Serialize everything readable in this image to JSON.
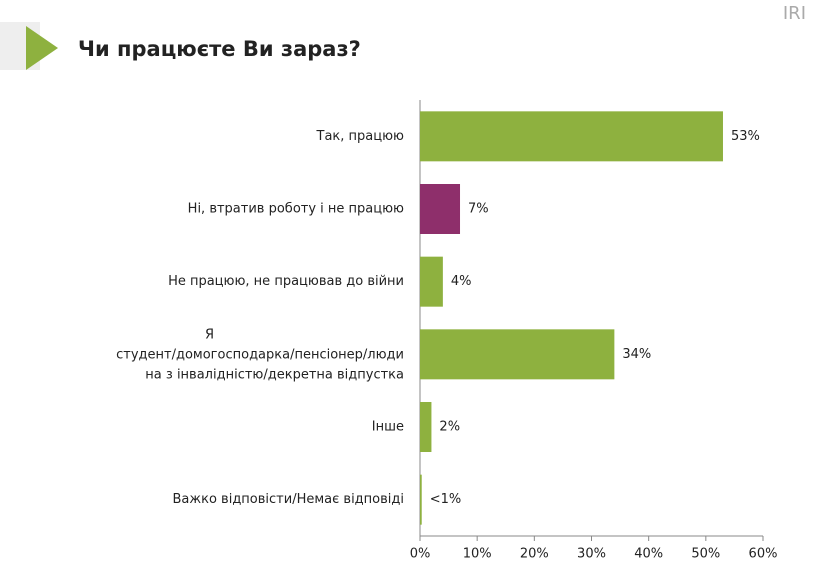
{
  "brand": "IRI",
  "chart_data": {
    "type": "bar",
    "orientation": "horizontal",
    "title": "Чи працюєте Ви зараз?",
    "categories": [
      "Так, працюю",
      "Ні, втратив роботу і не працюю",
      "Не працюю, не працював до війни",
      "Я\nстудент/домогосподарка/пенсіонер/люди\nна з інвалідністю/декретна відпустка",
      "Інше",
      "Важко відповісти/Немає відповіді"
    ],
    "values": [
      53,
      7,
      4,
      34,
      2,
      0.3
    ],
    "value_labels": [
      "53%",
      "7%",
      "4%",
      "34%",
      "2%",
      "<1%"
    ],
    "colors": [
      "#8eb13f",
      "#8e2f6b",
      "#8eb13f",
      "#8eb13f",
      "#8eb13f",
      "#8eb13f"
    ],
    "xlim": [
      0,
      60
    ],
    "xticks": [
      {
        "value": 0,
        "label": "0%"
      },
      {
        "value": 10,
        "label": "10%"
      },
      {
        "value": 20,
        "label": "20%"
      },
      {
        "value": 30,
        "label": "30%"
      },
      {
        "value": 40,
        "label": "40%"
      },
      {
        "value": 50,
        "label": "50%"
      },
      {
        "value": 60,
        "label": "60%"
      }
    ]
  }
}
